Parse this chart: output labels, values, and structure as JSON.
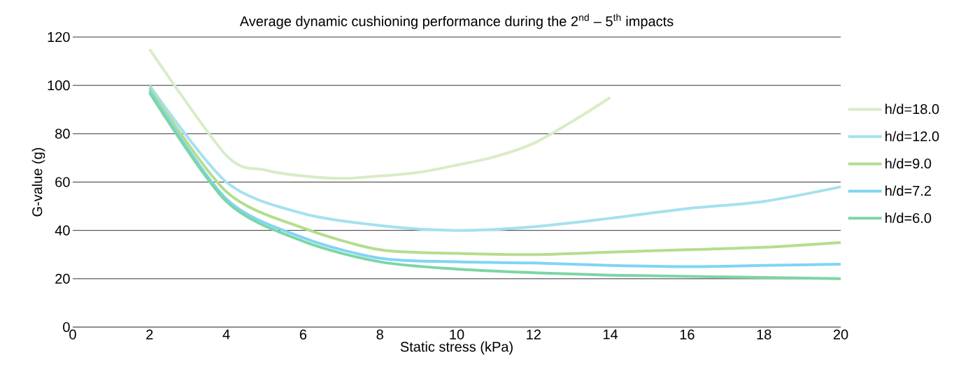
{
  "chart_data": {
    "type": "line",
    "title": "Average dynamic cushioning performance during the 2$^{nd}$ – 5$^{th}$ impacts",
    "xlabel": "Static stress (kPa)",
    "ylabel": "G-value (g)",
    "xlim": [
      0,
      20
    ],
    "xticks": [
      0,
      2,
      4,
      6,
      8,
      10,
      12,
      14,
      16,
      18,
      20
    ],
    "ylim": [
      0,
      120
    ],
    "yticks": [
      0,
      20,
      40,
      60,
      80,
      100,
      120
    ],
    "grid": "y",
    "legend": "right",
    "marker": "none",
    "line_style": "solid",
    "series": [
      {
        "name": "h/d=18.0",
        "color": "#d9ecc6",
        "x": [
          2,
          4,
          5,
          6,
          7,
          8,
          9,
          10,
          11,
          12,
          13,
          14
        ],
        "values": [
          115,
          71,
          65,
          62.5,
          61.5,
          62.5,
          64,
          67,
          70.5,
          76,
          85,
          95
        ]
      },
      {
        "name": "h/d=12.0",
        "color": "#a6e1ef",
        "x": [
          2,
          4,
          6,
          8,
          10,
          12,
          14,
          16,
          18,
          20
        ],
        "values": [
          100,
          60,
          47,
          42,
          40,
          41.5,
          45,
          49,
          52,
          58
        ]
      },
      {
        "name": "h/d=9.0",
        "color": "#b5dd8d",
        "x": [
          2,
          4,
          6,
          8,
          10,
          12,
          14,
          16,
          18,
          20
        ],
        "values": [
          99,
          56,
          41,
          32,
          30.5,
          30,
          31,
          32,
          33,
          35
        ]
      },
      {
        "name": "h/d=7.2",
        "color": "#7fd5f5",
        "x": [
          2,
          4,
          6,
          8,
          10,
          12,
          14,
          16,
          18,
          20
        ],
        "values": [
          98,
          53,
          37,
          28.5,
          27,
          26.5,
          25.5,
          25,
          25.5,
          26
        ]
      },
      {
        "name": "h/d=6.0",
        "color": "#7dd5a5",
        "x": [
          2,
          4,
          6,
          8,
          10,
          12,
          14,
          16,
          18,
          20
        ],
        "values": [
          97,
          52,
          35.5,
          27,
          24,
          22.5,
          21.5,
          21,
          20.5,
          20
        ]
      }
    ]
  }
}
